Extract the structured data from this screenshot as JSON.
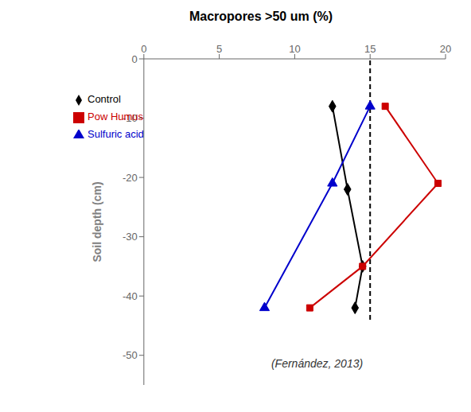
{
  "chart_data": {
    "type": "line",
    "title": "Macropores >50 um (%)",
    "y_label": "Soil depth (cm)",
    "x_axis_position": "top",
    "xlim": [
      0,
      20
    ],
    "ylim": [
      -55,
      0
    ],
    "xticks": [
      0,
      5,
      10,
      15,
      20
    ],
    "yticks": [
      0,
      -10,
      -20,
      -30,
      -40,
      -50
    ],
    "grid": false,
    "legend": "upper left",
    "series": [
      {
        "name": "Control",
        "color": "#000000",
        "marker": "diamond",
        "x": [
          12.5,
          13.5,
          14.5,
          14.0
        ],
        "values": [
          -8,
          -22,
          -35,
          -42
        ]
      },
      {
        "name": "Pow Humus",
        "color": "#cc0000",
        "marker": "square",
        "x": [
          16.0,
          19.5,
          14.5,
          11.0
        ],
        "values": [
          -8,
          -21,
          -35,
          -42
        ]
      },
      {
        "name": "Sulfuric acid",
        "color": "#0000cc",
        "marker": "triangle",
        "x": [
          15.0,
          12.5,
          8.0
        ],
        "values": [
          -8,
          -21,
          -42
        ]
      }
    ],
    "reference_lines": [
      {
        "x": 15,
        "y": [
          -44,
          0
        ],
        "color": "#000000",
        "line_style": "dashed"
      }
    ],
    "annotations": [
      {
        "text": "(Fernández, 2013)",
        "x": 8.5,
        "y": -50.5
      }
    ]
  }
}
